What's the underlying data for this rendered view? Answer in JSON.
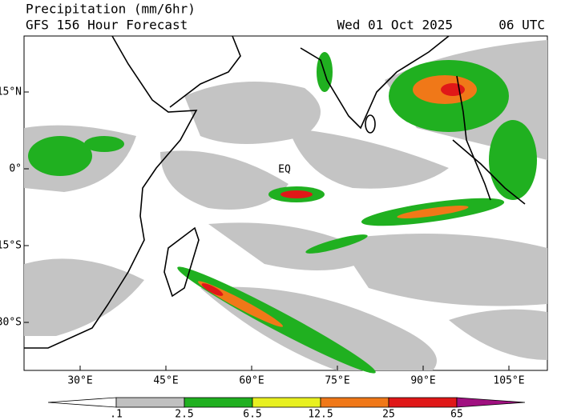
{
  "title": "Precipitation (mm/6hr)",
  "subtitle": "GFS 156 Hour Forecast",
  "valid_date": "Wed 01 Oct 2025",
  "valid_time": "06 UTC",
  "map": {
    "equator_label": "EQ",
    "lat_ticks": [
      "15°N",
      "0°",
      "15°S",
      "30°S"
    ],
    "lon_ticks": [
      "30°E",
      "45°E",
      "60°E",
      "75°E",
      "90°E",
      "105°E"
    ]
  },
  "colorbar": {
    "colors": [
      "#ffffff",
      "#c0c0c0",
      "#20b020",
      "#e8f020",
      "#f07818",
      "#e01818",
      "#a01080"
    ],
    "labels": [
      ".1",
      "2.5",
      "6.5",
      "12.5",
      "25",
      "65"
    ]
  }
}
